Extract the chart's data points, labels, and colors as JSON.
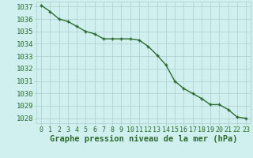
{
  "x": [
    0,
    1,
    2,
    3,
    4,
    5,
    6,
    7,
    8,
    9,
    10,
    11,
    12,
    13,
    14,
    15,
    16,
    17,
    18,
    19,
    20,
    21,
    22,
    23
  ],
  "y": [
    1037.1,
    1036.6,
    1036.0,
    1035.8,
    1035.4,
    1035.0,
    1034.8,
    1034.4,
    1034.4,
    1034.4,
    1034.4,
    1034.3,
    1033.8,
    1033.1,
    1032.3,
    1031.0,
    1030.4,
    1030.0,
    1029.6,
    1029.1,
    1029.1,
    1028.7,
    1028.1,
    1028.0
  ],
  "ylim": [
    1027.6,
    1037.4
  ],
  "xlim": [
    -0.5,
    23.5
  ],
  "yticks": [
    1028,
    1029,
    1030,
    1031,
    1032,
    1033,
    1034,
    1035,
    1036,
    1037
  ],
  "xticks": [
    0,
    1,
    2,
    3,
    4,
    5,
    6,
    7,
    8,
    9,
    10,
    11,
    12,
    13,
    14,
    15,
    16,
    17,
    18,
    19,
    20,
    21,
    22,
    23
  ],
  "xlabel": "Graphe pression niveau de la mer (hPa)",
  "line_color": "#2d6a2d",
  "marker": "+",
  "marker_size": 3.5,
  "bg_color": "#cff0ee",
  "grid_color": "#aacece",
  "tick_label_color": "#2d6a2d",
  "xlabel_color": "#2d6a2d",
  "xlabel_fontsize": 7.5,
  "ytick_fontsize": 6.5,
  "xtick_fontsize": 6.0,
  "linewidth": 1.0
}
